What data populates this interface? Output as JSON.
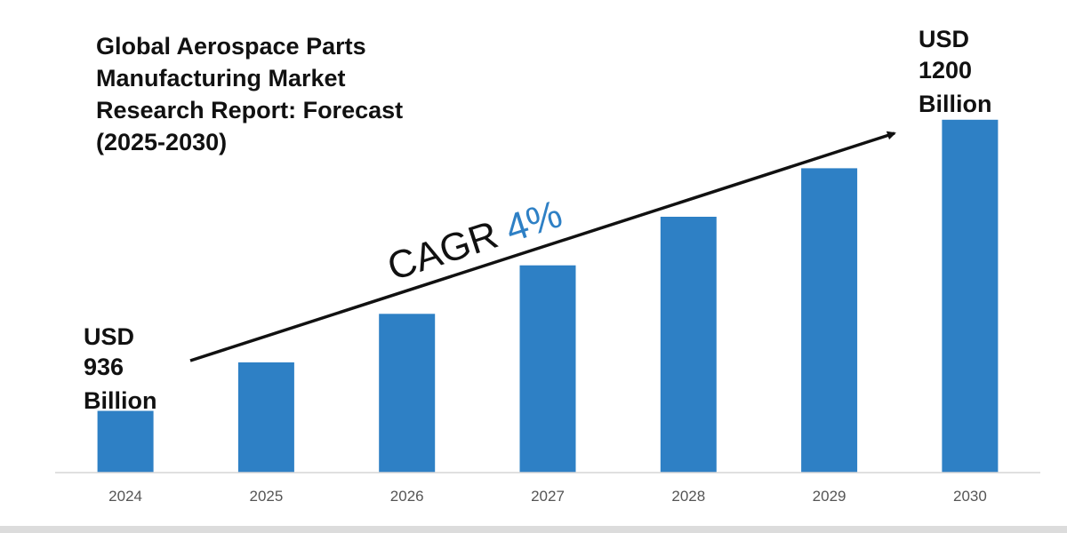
{
  "chart_data": {
    "type": "bar",
    "title": "Global Aerospace Parts Manufacturing Market Research Report: Forecast (2025-2030)",
    "title_lines": [
      "Global Aerospace Parts",
      "Manufacturing Market",
      "Research Report: Forecast",
      "(2025-2030)"
    ],
    "categories": [
      "2024",
      "2025",
      "2026",
      "2027",
      "2028",
      "2029",
      "2030"
    ],
    "values": [
      936,
      980,
      1024,
      1068,
      1112,
      1156,
      1200
    ],
    "ylim": [
      880,
      1220
    ],
    "xlabel": "",
    "ylabel": "",
    "grid": false,
    "start_label_lines": [
      "USD",
      "936",
      "Billion"
    ],
    "end_label_lines": [
      "USD",
      "1200",
      "Billion"
    ],
    "cagr_text": "CAGR ",
    "cagr_value": "4%",
    "colors": {
      "bar": "#2e80c5",
      "text": "#111111",
      "cagr_value": "#2e80c5",
      "axis": "#d6d6d6",
      "tick_label": "#555555"
    }
  }
}
